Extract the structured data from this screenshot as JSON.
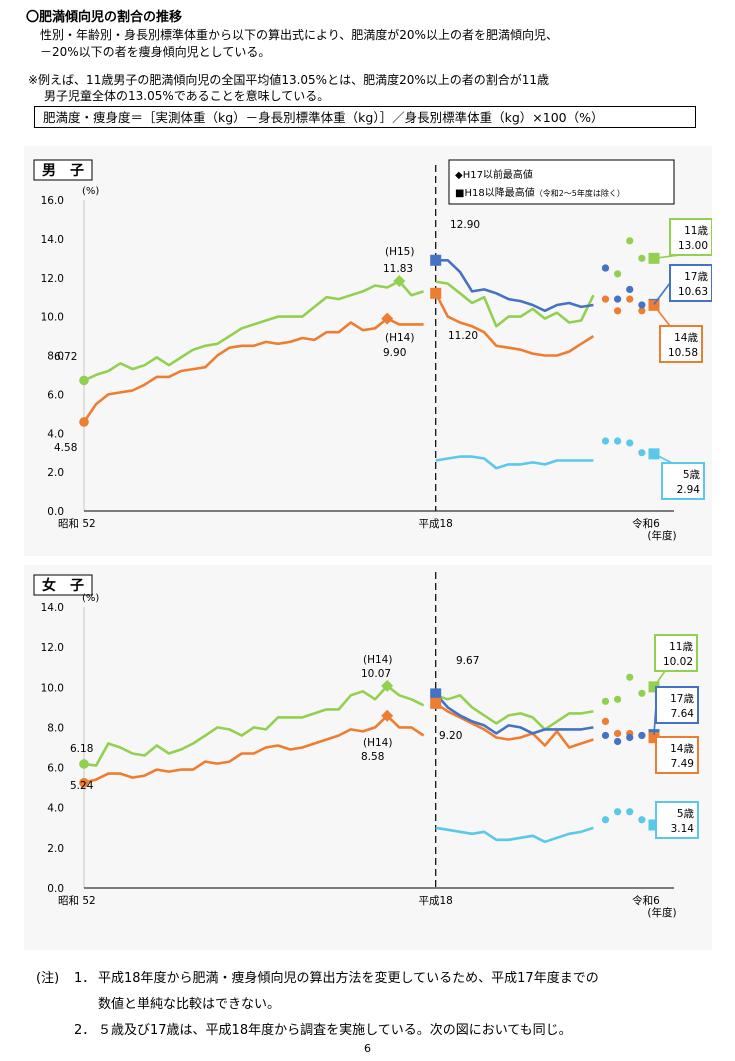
{
  "header": {
    "title": "〇肥満傾向児の割合の推移",
    "intro_line1": "性別・年齢別・身長別標準体重から以下の算出式により、肥満度が20%以上の者を肥満傾向児、",
    "intro_line2": "－20%以下の者を痩身傾向児としている。",
    "example_line1": "※例えば、11歳男子の肥満傾向児の全国平均値13.05%とは、肥満度20%以上の者の割合が11歳",
    "example_line2": "男子児童全体の13.05%であることを意味している。",
    "formula": "肥満度・痩身度＝［実測体重（kg）－身長別標準体重（kg）］／身長別標準体重（kg）×100（%）"
  },
  "legend": {
    "item1": "◆H17以前最高値",
    "item2_main": "■H18以降最高値",
    "item2_note": "（令和2～5年度は除く）"
  },
  "chart_data": [
    {
      "type": "line",
      "title": "男　子",
      "ylabel": "(%)",
      "xlabel": "(年度)",
      "ylim": [
        0,
        16
      ],
      "yticks": [
        "0.0",
        "2.0",
        "4.0",
        "6.0",
        "8.0",
        "10.0",
        "12.0",
        "14.0",
        "16.0"
      ],
      "x_tick_labels": [
        "昭和 52",
        "平成18",
        "令和6"
      ],
      "x_range": [
        1977,
        2024
      ],
      "break_year": 2006,
      "series": [
        {
          "name": "11歳",
          "color": "#92d050",
          "x": [
            1977,
            1978,
            1979,
            1980,
            1981,
            1982,
            1983,
            1984,
            1985,
            1986,
            1987,
            1988,
            1989,
            1990,
            1991,
            1992,
            1993,
            1994,
            1995,
            1996,
            1997,
            1998,
            1999,
            2000,
            2001,
            2002,
            2003,
            2004,
            2005
          ],
          "values": [
            6.72,
            7.0,
            7.2,
            7.6,
            7.3,
            7.5,
            7.9,
            7.5,
            7.9,
            8.3,
            8.5,
            8.6,
            9.0,
            9.4,
            9.6,
            9.8,
            10.0,
            10.0,
            10.0,
            10.5,
            11.0,
            10.9,
            11.1,
            11.3,
            11.6,
            11.5,
            11.83,
            11.1,
            11.3
          ]
        },
        {
          "name": "14歳",
          "color": "#ed7d31",
          "x": [
            1977,
            1978,
            1979,
            1980,
            1981,
            1982,
            1983,
            1984,
            1985,
            1986,
            1987,
            1988,
            1989,
            1990,
            1991,
            1992,
            1993,
            1994,
            1995,
            1996,
            1997,
            1998,
            1999,
            2000,
            2001,
            2002,
            2003,
            2004,
            2005
          ],
          "values": [
            4.58,
            5.5,
            6.0,
            6.1,
            6.2,
            6.5,
            6.9,
            6.9,
            7.2,
            7.3,
            7.4,
            8.0,
            8.4,
            8.5,
            8.5,
            8.7,
            8.6,
            8.7,
            8.9,
            8.8,
            9.2,
            9.2,
            9.7,
            9.3,
            9.4,
            9.9,
            9.6,
            9.6,
            9.6
          ]
        },
        {
          "name": "11歳",
          "color": "#92d050",
          "x": [
            2006,
            2007,
            2008,
            2009,
            2010,
            2011,
            2012,
            2013,
            2014,
            2015,
            2016,
            2017,
            2018,
            2019
          ],
          "values": [
            11.8,
            11.7,
            11.2,
            10.7,
            11.0,
            9.5,
            10.0,
            10.0,
            10.4,
            9.9,
            10.2,
            9.7,
            9.8,
            11.1
          ]
        },
        {
          "name": "14歳",
          "color": "#ed7d31",
          "x": [
            2006,
            2007,
            2008,
            2009,
            2010,
            2011,
            2012,
            2013,
            2014,
            2015,
            2016,
            2017,
            2018,
            2019
          ],
          "values": [
            11.2,
            10.0,
            9.7,
            9.5,
            9.2,
            8.5,
            8.4,
            8.3,
            8.1,
            8.0,
            8.0,
            8.2,
            8.6,
            9.0
          ]
        },
        {
          "name": "17歳",
          "color": "#4472c4",
          "x": [
            2006,
            2007,
            2008,
            2009,
            2010,
            2011,
            2012,
            2013,
            2014,
            2015,
            2016,
            2017,
            2018,
            2019
          ],
          "values": [
            12.9,
            12.9,
            12.3,
            11.3,
            11.4,
            11.2,
            10.9,
            10.8,
            10.6,
            10.3,
            10.6,
            10.7,
            10.5,
            10.6
          ]
        },
        {
          "name": "5歳",
          "color": "#5ac8e8",
          "x": [
            2006,
            2007,
            2008,
            2009,
            2010,
            2011,
            2012,
            2013,
            2014,
            2015,
            2016,
            2017,
            2018,
            2019
          ],
          "values": [
            2.6,
            2.7,
            2.8,
            2.8,
            2.7,
            2.2,
            2.4,
            2.4,
            2.5,
            2.4,
            2.6,
            2.6,
            2.6,
            2.6
          ]
        }
      ],
      "dots": [
        {
          "name": "11歳",
          "color": "#92d050",
          "x": [
            2020,
            2021,
            2022,
            2023
          ],
          "values": [
            12.5,
            12.2,
            13.9,
            13.0
          ]
        },
        {
          "name": "14歳",
          "color": "#ed7d31",
          "x": [
            2020,
            2021,
            2022,
            2023
          ],
          "values": [
            10.9,
            10.3,
            10.9,
            10.3
          ]
        },
        {
          "name": "17歳",
          "color": "#4472c4",
          "x": [
            2020,
            2021,
            2022,
            2023
          ],
          "values": [
            12.5,
            10.9,
            11.4,
            10.6
          ]
        },
        {
          "name": "5歳",
          "color": "#5ac8e8",
          "x": [
            2020,
            2021,
            2022,
            2023
          ],
          "values": [
            3.6,
            3.6,
            3.5,
            3.0
          ]
        }
      ],
      "markers": [
        {
          "shape": "diamond",
          "color": "#92d050",
          "x": 2003,
          "value": 11.83
        },
        {
          "shape": "diamond",
          "color": "#ed7d31",
          "x": 2002,
          "value": 9.9
        },
        {
          "shape": "square",
          "color": "#4472c4",
          "x": 2006,
          "value": 12.9
        },
        {
          "shape": "square",
          "color": "#ed7d31",
          "x": 2006,
          "value": 11.2
        },
        {
          "shape": "square",
          "color": "#92d050",
          "x": 2024,
          "value": 13.0
        },
        {
          "shape": "square",
          "color": "#4472c4",
          "x": 2024,
          "value": 10.63
        },
        {
          "shape": "square",
          "color": "#ed7d31",
          "x": 2024,
          "value": 10.58
        },
        {
          "shape": "square",
          "color": "#5ac8e8",
          "x": 2024,
          "value": 2.94
        },
        {
          "shape": "circle",
          "color": "#92d050",
          "x": 1977,
          "value": 6.72
        },
        {
          "shape": "circle",
          "color": "#ed7d31",
          "x": 1977,
          "value": 4.58
        }
      ],
      "annotations": [
        {
          "text": "6.72"
        },
        {
          "text": "4.58"
        },
        {
          "text": "(H15)"
        },
        {
          "text": "11.83"
        },
        {
          "text": "(H14)"
        },
        {
          "text": "9.90"
        },
        {
          "text": "12.90"
        },
        {
          "text": "11.20"
        }
      ],
      "end_boxes": [
        {
          "age": "11歳",
          "value": "13.00",
          "color": "#92d050"
        },
        {
          "age": "17歳",
          "value": "10.63",
          "color": "#4472c4"
        },
        {
          "age": "14歳",
          "value": "10.58",
          "color": "#ed7d31"
        },
        {
          "age": "5歳",
          "value": "2.94",
          "color": "#5ac8e8"
        }
      ]
    },
    {
      "type": "line",
      "title": "女　子",
      "ylabel": "(%)",
      "xlabel": "(年度)",
      "ylim": [
        0,
        14
      ],
      "yticks": [
        "0.0",
        "2.0",
        "4.0",
        "6.0",
        "8.0",
        "10.0",
        "12.0",
        "14.0"
      ],
      "x_tick_labels": [
        "昭和 52",
        "平成18",
        "令和6"
      ],
      "x_range": [
        1977,
        2024
      ],
      "break_year": 2006,
      "series": [
        {
          "name": "11歳",
          "color": "#92d050",
          "x": [
            1977,
            1978,
            1979,
            1980,
            1981,
            1982,
            1983,
            1984,
            1985,
            1986,
            1987,
            1988,
            1989,
            1990,
            1991,
            1992,
            1993,
            1994,
            1995,
            1996,
            1997,
            1998,
            1999,
            2000,
            2001,
            2002,
            2003,
            2004,
            2005
          ],
          "values": [
            6.18,
            6.1,
            7.2,
            7.0,
            6.7,
            6.6,
            7.1,
            6.7,
            6.9,
            7.2,
            7.6,
            8.0,
            7.9,
            7.6,
            8.0,
            7.9,
            8.5,
            8.5,
            8.5,
            8.7,
            8.9,
            8.9,
            9.6,
            9.8,
            9.4,
            10.07,
            9.6,
            9.4,
            9.1
          ]
        },
        {
          "name": "14歳",
          "color": "#ed7d31",
          "x": [
            1977,
            1978,
            1979,
            1980,
            1981,
            1982,
            1983,
            1984,
            1985,
            1986,
            1987,
            1988,
            1989,
            1990,
            1991,
            1992,
            1993,
            1994,
            1995,
            1996,
            1997,
            1998,
            1999,
            2000,
            2001,
            2002,
            2003,
            2004,
            2005
          ],
          "values": [
            5.24,
            5.4,
            5.7,
            5.7,
            5.5,
            5.6,
            5.9,
            5.8,
            5.9,
            5.9,
            6.3,
            6.2,
            6.3,
            6.7,
            6.7,
            7.0,
            7.1,
            6.9,
            7.0,
            7.2,
            7.4,
            7.6,
            7.9,
            7.8,
            8.0,
            8.58,
            8.0,
            8.0,
            7.6
          ]
        },
        {
          "name": "11歳",
          "color": "#92d050",
          "x": [
            2006,
            2007,
            2008,
            2009,
            2010,
            2011,
            2012,
            2013,
            2014,
            2015,
            2016,
            2017,
            2018,
            2019
          ],
          "values": [
            9.6,
            9.4,
            9.6,
            9.0,
            8.6,
            8.2,
            8.6,
            8.7,
            8.5,
            7.9,
            8.3,
            8.7,
            8.7,
            8.8
          ]
        },
        {
          "name": "14歳",
          "color": "#ed7d31",
          "x": [
            2006,
            2007,
            2008,
            2009,
            2010,
            2011,
            2012,
            2013,
            2014,
            2015,
            2016,
            2017,
            2018,
            2019
          ],
          "values": [
            9.2,
            8.8,
            8.5,
            8.2,
            7.9,
            7.5,
            7.4,
            7.5,
            7.7,
            7.1,
            7.8,
            7.0,
            7.2,
            7.4
          ]
        },
        {
          "name": "17歳",
          "color": "#4472c4",
          "x": [
            2006,
            2007,
            2008,
            2009,
            2010,
            2011,
            2012,
            2013,
            2014,
            2015,
            2016,
            2017,
            2018,
            2019
          ],
          "values": [
            9.67,
            9.0,
            8.6,
            8.3,
            8.1,
            7.7,
            8.1,
            8.0,
            7.7,
            7.9,
            7.9,
            7.9,
            7.9,
            8.0
          ]
        },
        {
          "name": "5歳",
          "color": "#5ac8e8",
          "x": [
            2006,
            2007,
            2008,
            2009,
            2010,
            2011,
            2012,
            2013,
            2014,
            2015,
            2016,
            2017,
            2018,
            2019
          ],
          "values": [
            3.0,
            2.9,
            2.8,
            2.7,
            2.8,
            2.4,
            2.4,
            2.5,
            2.6,
            2.3,
            2.5,
            2.7,
            2.8,
            3.0
          ]
        }
      ],
      "dots": [
        {
          "name": "11歳",
          "color": "#92d050",
          "x": [
            2020,
            2021,
            2022,
            2023
          ],
          "values": [
            9.3,
            9.4,
            10.5,
            9.7
          ]
        },
        {
          "name": "14歳",
          "color": "#ed7d31",
          "x": [
            2020,
            2021,
            2022,
            2023
          ],
          "values": [
            8.3,
            7.7,
            7.7,
            7.6
          ]
        },
        {
          "name": "17歳",
          "color": "#4472c4",
          "x": [
            2020,
            2021,
            2022,
            2023
          ],
          "values": [
            7.6,
            7.3,
            7.5,
            7.6
          ]
        },
        {
          "name": "5歳",
          "color": "#5ac8e8",
          "x": [
            2020,
            2021,
            2022,
            2023
          ],
          "values": [
            3.4,
            3.8,
            3.8,
            3.4
          ]
        }
      ],
      "markers": [
        {
          "shape": "diamond",
          "color": "#92d050",
          "x": 2002,
          "value": 10.07
        },
        {
          "shape": "diamond",
          "color": "#ed7d31",
          "x": 2002,
          "value": 8.58
        },
        {
          "shape": "square",
          "color": "#4472c4",
          "x": 2006,
          "value": 9.67
        },
        {
          "shape": "square",
          "color": "#ed7d31",
          "x": 2006,
          "value": 9.2
        },
        {
          "shape": "square",
          "color": "#92d050",
          "x": 2024,
          "value": 10.02
        },
        {
          "shape": "square",
          "color": "#4472c4",
          "x": 2024,
          "value": 7.64
        },
        {
          "shape": "square",
          "color": "#ed7d31",
          "x": 2024,
          "value": 7.49
        },
        {
          "shape": "square",
          "color": "#5ac8e8",
          "x": 2024,
          "value": 3.14
        },
        {
          "shape": "circle",
          "color": "#92d050",
          "x": 1977,
          "value": 6.18
        },
        {
          "shape": "circle",
          "color": "#ed7d31",
          "x": 1977,
          "value": 5.24
        }
      ],
      "annotations": [
        {
          "text": "6.18"
        },
        {
          "text": "5.24"
        },
        {
          "text": "(H14)"
        },
        {
          "text": "10.07"
        },
        {
          "text": "(H14)"
        },
        {
          "text": "8.58"
        },
        {
          "text": "9.67"
        },
        {
          "text": "9.20"
        }
      ],
      "end_boxes": [
        {
          "age": "11歳",
          "value": "10.02",
          "color": "#92d050"
        },
        {
          "age": "17歳",
          "value": "7.64",
          "color": "#4472c4"
        },
        {
          "age": "14歳",
          "value": "7.49",
          "color": "#ed7d31"
        },
        {
          "age": "5歳",
          "value": "3.14",
          "color": "#5ac8e8"
        }
      ]
    }
  ],
  "footer": {
    "note_label": "(注)",
    "n1_num": "1．",
    "n1_line1": "平成18年度から肥満・痩身傾向児の算出方法を変更しているため、平成17年度までの",
    "n1_line2": "数値と単純な比較はできない。",
    "n2_num": "2．",
    "n2_line1": "５歳及び17歳は、平成18年度から調査を実施している。次の図においても同じ。",
    "page_number": "6"
  }
}
